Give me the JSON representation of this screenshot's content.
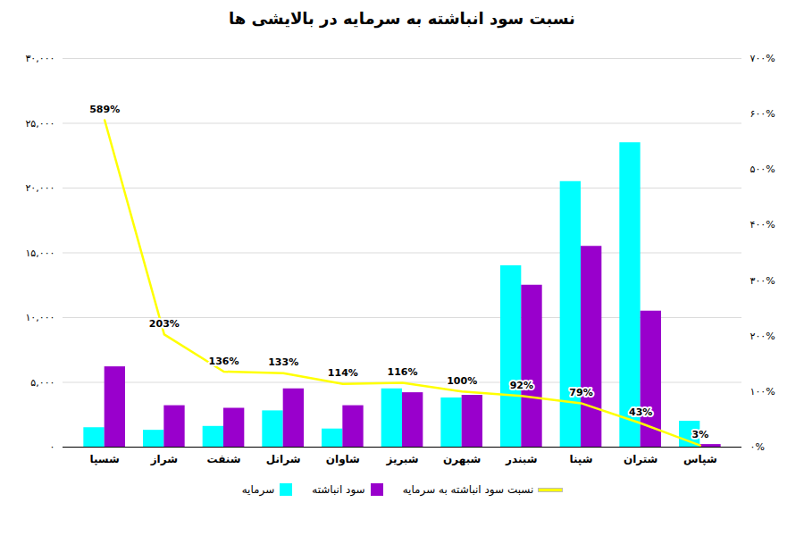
{
  "chart_data": {
    "type": "bar",
    "title": "نسبت سود انباشته به سرمایه در بالایشی ها",
    "categories": [
      "شسپا",
      "شراز",
      "شنفت",
      "شرانل",
      "شاوان",
      "شبریز",
      "شبهرن",
      "شبندر",
      "شپنا",
      "شتران",
      "شپاس"
    ],
    "series": [
      {
        "name": "سرمایه",
        "color": "#00FFFF",
        "values": [
          1500,
          1300,
          1600,
          2800,
          1400,
          4500,
          3800,
          14000,
          20500,
          23500,
          2000
        ]
      },
      {
        "name": "سود انباشته",
        "color": "#9900CC",
        "values": [
          6200,
          3200,
          3000,
          4500,
          3200,
          4200,
          4000,
          12500,
          15500,
          10500,
          200
        ]
      },
      {
        "name": "نسبت سود انباشته به سرمایه",
        "type": "line",
        "axis": "y2",
        "color": "#FFFF00",
        "data_labels": true,
        "values": [
          589,
          203,
          136,
          133,
          114,
          116,
          100,
          92,
          79,
          43,
          3
        ],
        "value_labels": [
          "589%",
          "203%",
          "136%",
          "133%",
          "114%",
          "116%",
          "100%",
          "92%",
          "79%",
          "43%",
          "3%"
        ]
      }
    ],
    "ylim": [
      0,
      30000
    ],
    "yticks": [
      {
        "value": 0,
        "label": "۰"
      },
      {
        "value": 5000,
        "label": "۵,۰۰۰"
      },
      {
        "value": 10000,
        "label": "۱۰,۰۰۰"
      },
      {
        "value": 15000,
        "label": "۱۵,۰۰۰"
      },
      {
        "value": 20000,
        "label": "۲۰,۰۰۰"
      },
      {
        "value": 25000,
        "label": "۲۵,۰۰۰"
      },
      {
        "value": 30000,
        "label": "۳۰,۰۰۰"
      }
    ],
    "y2lim": [
      0,
      700
    ],
    "y2ticks": [
      {
        "value": 0,
        "label": "۰%"
      },
      {
        "value": 100,
        "label": "۱۰۰%"
      },
      {
        "value": 200,
        "label": "۲۰۰%"
      },
      {
        "value": 300,
        "label": "۳۰۰%"
      },
      {
        "value": 400,
        "label": "۴۰۰%"
      },
      {
        "value": 500,
        "label": "۵۰۰%"
      },
      {
        "value": 600,
        "label": "۶۰۰%"
      },
      {
        "value": 700,
        "label": "۷۰۰%"
      }
    ],
    "grid": true,
    "legend": "bottom"
  }
}
